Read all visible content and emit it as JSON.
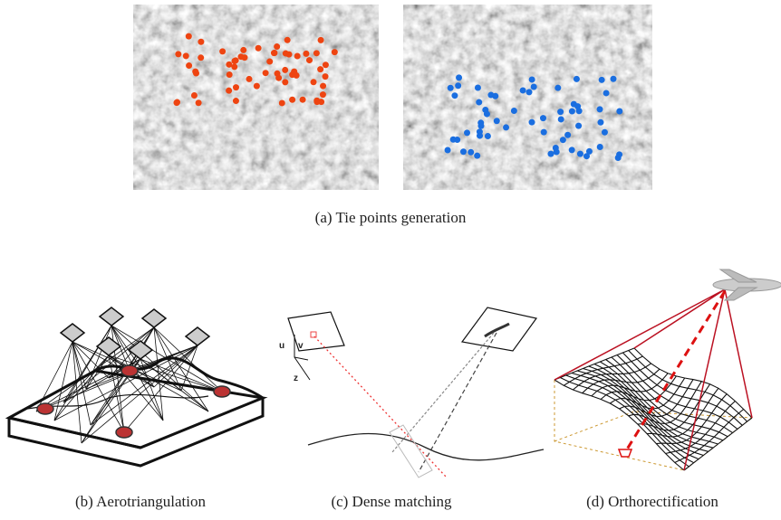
{
  "figure": {
    "panels": [
      {
        "caption": "(a) Tie points generation"
      },
      {
        "caption": "(b) Aerotriangulation"
      },
      {
        "caption": "(c) Dense matching",
        "axis_labels": [
          "u",
          "v",
          "z"
        ]
      },
      {
        "caption": "(d) Orthorectification"
      }
    ]
  }
}
